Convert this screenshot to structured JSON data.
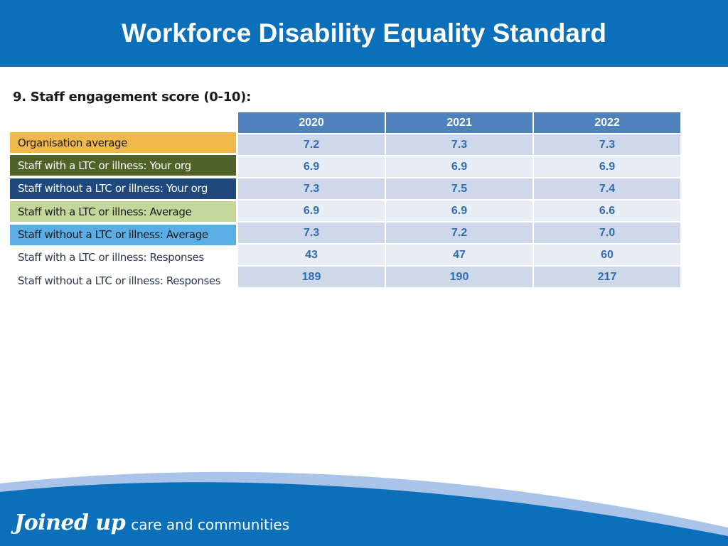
{
  "header": {
    "title": "Workforce Disability Equality Standard"
  },
  "section": {
    "title": "9. Staff engagement score (0-10):"
  },
  "legend": [
    {
      "label": "Organisation average",
      "bg": "#f1b84a",
      "fg": "#1a1a1a"
    },
    {
      "label": "Staff with a LTC or illness: Your org",
      "bg": "#4f6228",
      "fg": "#ffffff"
    },
    {
      "label": "Staff without a LTC or illness: Your org",
      "bg": "#1f497d",
      "fg": "#ffffff"
    },
    {
      "label": "Staff with a LTC or illness: Average",
      "bg": "#c4d79b",
      "fg": "#1a1a1a"
    },
    {
      "label": "Staff without a LTC or illness: Average",
      "bg": "#5aaee5",
      "fg": "#1a1a1a"
    },
    {
      "label": "Staff with a LTC or illness: Responses",
      "bg": "#ffffff",
      "fg": "#2f3a4a"
    },
    {
      "label": "Staff without a LTC or illness: Responses",
      "bg": "#ffffff",
      "fg": "#2f3a4a"
    }
  ],
  "table": {
    "columns": [
      "2020",
      "2021",
      "2022"
    ],
    "rows": [
      [
        "7.2",
        "7.3",
        "7.3"
      ],
      [
        "6.9",
        "6.9",
        "6.9"
      ],
      [
        "7.3",
        "7.5",
        "7.4"
      ],
      [
        "6.9",
        "6.9",
        "6.6"
      ],
      [
        "7.3",
        "7.2",
        "7.0"
      ],
      [
        "43",
        "47",
        "60"
      ],
      [
        "189",
        "190",
        "217"
      ]
    ]
  },
  "footer": {
    "brand": "Joined up",
    "tagline": "care and communities"
  },
  "colors": {
    "header_bg": "#0c6fba",
    "table_header_bg": "#4f81bd",
    "cell_text": "#2e6db4",
    "footer_blue": "#0c6fba",
    "footer_light": "#a9c4e8"
  }
}
